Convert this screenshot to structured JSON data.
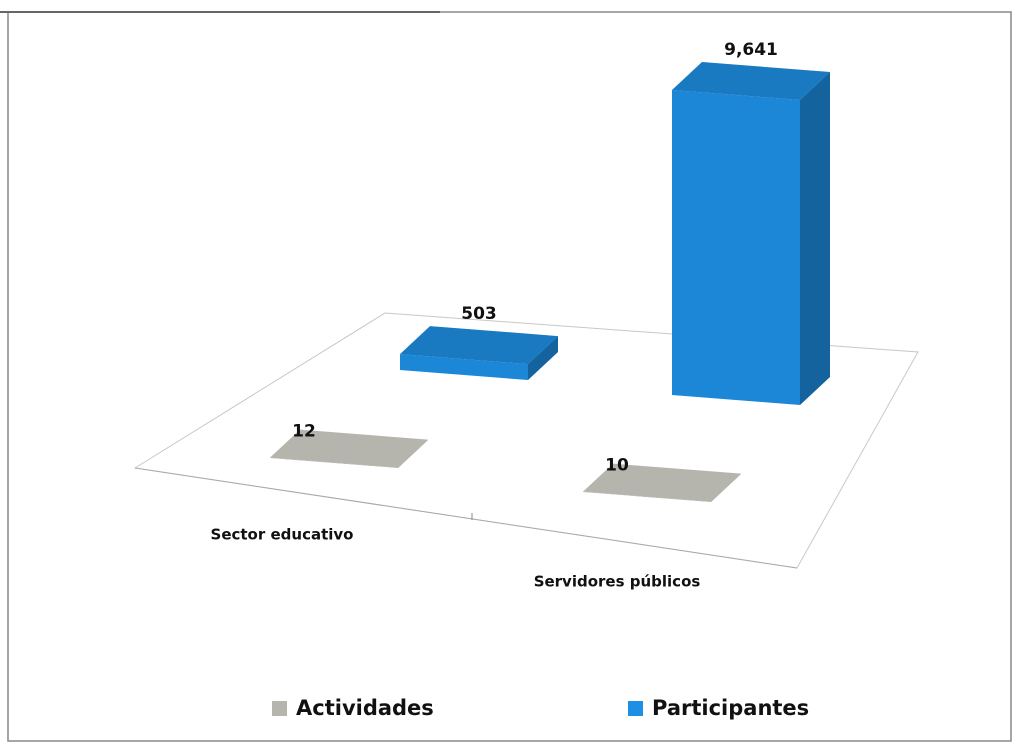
{
  "chart_data": {
    "type": "bar3d",
    "categories": [
      "Sector educativo",
      "Servidores públicos"
    ],
    "series": [
      {
        "name": "Actividades",
        "color": "#b5b5ad",
        "values": [
          12,
          10
        ]
      },
      {
        "name": "Participantes",
        "color": "#1e8fe3",
        "values": [
          503,
          9641
        ],
        "value_labels": [
          "503",
          "9,641"
        ]
      }
    ]
  }
}
